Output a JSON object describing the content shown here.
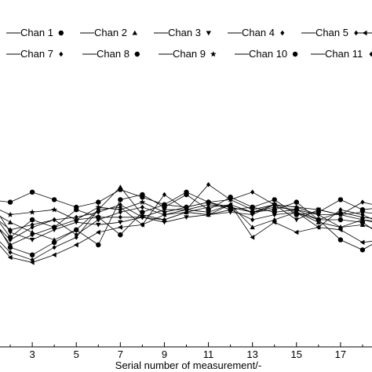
{
  "chart_data": {
    "type": "line",
    "xlabel": "Serial number of measurement/-",
    "ylabel": "",
    "title": "",
    "xlim": [
      1,
      19
    ],
    "xticks": [
      3,
      5,
      7,
      9,
      11,
      13,
      15,
      17
    ],
    "ylim": [
      0,
      10
    ],
    "grid": false,
    "legend_position": "top",
    "x": [
      1,
      2,
      3,
      4,
      5,
      6,
      7,
      8,
      9,
      10,
      11,
      12,
      13,
      14,
      15,
      16,
      17,
      18,
      19
    ],
    "series": [
      {
        "name": "Chan 1",
        "marker": "dot",
        "values": [
          5.8,
          5.7,
          6.1,
          5.8,
          5.5,
          5.7,
          6.2,
          5.9,
          5.6,
          5.5,
          5.7,
          5.4,
          5.5,
          5.8,
          5.2,
          5.3,
          5.8,
          5.4,
          5.5
        ]
      },
      {
        "name": "Chan 2",
        "marker": "triangle",
        "values": [
          5.4,
          4.9,
          4.5,
          4.2,
          4.6,
          5.4,
          6.3,
          5.2,
          5.0,
          5.3,
          5.2,
          5.6,
          4.7,
          5.0,
          5.3,
          4.9,
          4.7,
          4.8,
          4.5
        ]
      },
      {
        "name": "Chan 3",
        "marker": "triangle-down",
        "values": [
          5.9,
          4.5,
          4.2,
          4.6,
          4.9,
          4.8,
          4.9,
          5.1,
          4.9,
          5.1,
          5.2,
          5.3,
          5.2,
          5.6,
          5.0,
          5.4,
          5.2,
          5.0,
          4.8
        ]
      },
      {
        "name": "Chan 4",
        "marker": "diamond",
        "values": [
          5.2,
          4.0,
          4.4,
          4.7,
          5.0,
          5.1,
          5.1,
          5.1,
          5.0,
          5.3,
          5.2,
          5.4,
          5.0,
          5.2,
          5.3,
          4.7,
          5.4,
          5.2,
          4.8
        ]
      },
      {
        "name": "Chan 5",
        "marker": "diamond",
        "values": [
          4.6,
          3.7,
          3.4,
          3.9,
          4.3,
          5.4,
          5.5,
          4.8,
          6.0,
          5.4,
          6.4,
          5.8,
          6.1,
          5.6,
          5.5,
          5.2,
          5.2,
          5.7,
          5.5
        ]
      },
      {
        "name": "Chan 6",
        "marker": "triangle-left",
        "values": [
          4.5,
          3.5,
          3.3,
          3.6,
          4.0,
          4.5,
          4.7,
          4.8,
          5.2,
          5.4,
          5.3,
          5.6,
          4.3,
          4.9,
          4.5,
          4.7,
          4.6,
          4.1,
          4.2
        ]
      },
      {
        "name": "Chan 7",
        "marker": "diamond",
        "values": [
          5.1,
          4.2,
          4.7,
          5.0,
          4.4,
          5.0,
          5.3,
          5.5,
          5.2,
          5.3,
          5.5,
          5.6,
          5.3,
          5.5,
          5.4,
          5.2,
          4.7,
          5.0,
          4.9
        ]
      },
      {
        "name": "Chan 8",
        "marker": "dot",
        "values": [
          5.4,
          3.9,
          3.6,
          4.1,
          4.6,
          4.0,
          5.8,
          6.0,
          5.5,
          6.0,
          5.4,
          5.9,
          5.5,
          5.3,
          5.4,
          5.0,
          5.0,
          4.9,
          4.3
        ]
      },
      {
        "name": "Chan 9",
        "marker": "star",
        "values": [
          5.6,
          5.2,
          5.3,
          5.4,
          5.0,
          5.5,
          5.4,
          5.7,
          5.3,
          5.5,
          5.7,
          5.8,
          5.4,
          5.6,
          5.5,
          5.4,
          5.2,
          5.3,
          5.2
        ]
      },
      {
        "name": "Chan 10",
        "marker": "dot",
        "values": [
          5.5,
          4.3,
          5.0,
          4.7,
          5.4,
          5.1,
          4.4,
          5.3,
          5.6,
          6.1,
          5.7,
          5.5,
          5.3,
          5.4,
          5.7,
          5.0,
          4.2,
          3.8,
          4.3
        ]
      },
      {
        "name": "Chan 11",
        "marker": "diamond",
        "values": [
          5.3,
          4.6,
          4.8,
          5.0,
          5.1,
          5.3,
          5.6,
          5.1,
          5.4,
          5.4,
          5.6,
          5.5,
          5.3,
          5.6,
          5.3,
          5.0,
          5.3,
          5.1,
          5.0
        ]
      }
    ]
  }
}
